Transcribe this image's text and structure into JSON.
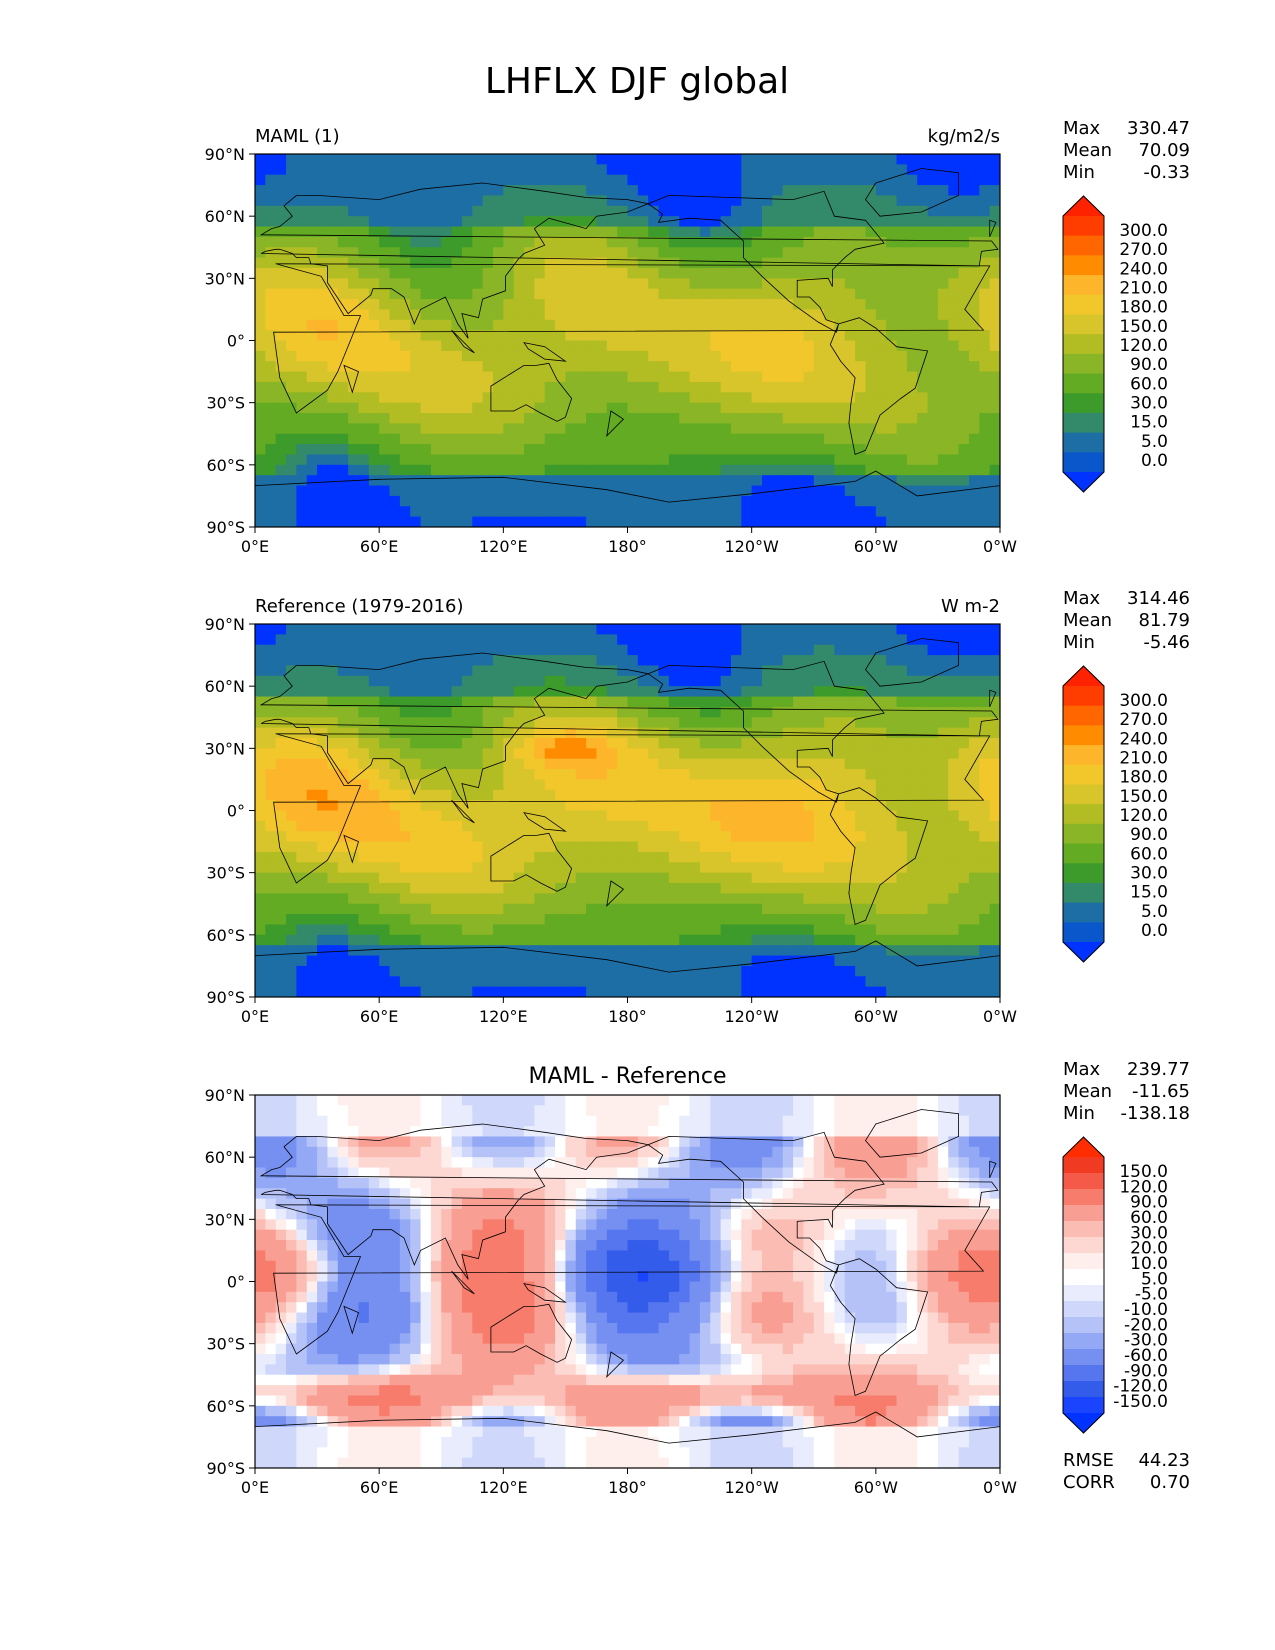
{
  "figure": {
    "title": "LHFLX DJF global"
  },
  "axes": {
    "lat_ticks": [
      "90°N",
      "60°N",
      "30°N",
      "0°",
      "30°S",
      "60°S",
      "90°S"
    ],
    "lon_ticks": [
      "0°E",
      "60°E",
      "120°E",
      "180°",
      "120°W",
      "60°W",
      "0°W"
    ]
  },
  "panels": [
    {
      "id": "test",
      "left_label": "MAML (1)",
      "right_label": "kg/m2/s",
      "center_title": "",
      "stats": [
        {
          "label": "Max",
          "value": "330.47"
        },
        {
          "label": "Mean",
          "value": "70.09"
        },
        {
          "label": "Min",
          "value": "-0.33"
        }
      ],
      "extra_stats": [],
      "colorbar": {
        "levels": [
          "300.0",
          "270.0",
          "240.0",
          "210.0",
          "180.0",
          "150.0",
          "120.0",
          "90.0",
          "60.0",
          "30.0",
          "15.0",
          "5.0",
          "0.0"
        ],
        "colors": [
          "#ff2200",
          "#ff3d00",
          "#ff6600",
          "#ff8c00",
          "#fdb52b",
          "#f1c72b",
          "#d8c52b",
          "#b1bd23",
          "#89b526",
          "#62ab23",
          "#3d9b2b",
          "#338a6b",
          "#1d6ea4",
          "#0a57cc",
          "#0033ff"
        ]
      }
    },
    {
      "id": "reference",
      "left_label": "Reference (1979-2016)",
      "right_label": "W m-2",
      "center_title": "",
      "stats": [
        {
          "label": "Max",
          "value": "314.46"
        },
        {
          "label": "Mean",
          "value": "81.79"
        },
        {
          "label": "Min",
          "value": "-5.46"
        }
      ],
      "extra_stats": [],
      "colorbar": {
        "levels": [
          "300.0",
          "270.0",
          "240.0",
          "210.0",
          "180.0",
          "150.0",
          "120.0",
          "90.0",
          "60.0",
          "30.0",
          "15.0",
          "5.0",
          "0.0"
        ],
        "colors": [
          "#ff2200",
          "#ff3d00",
          "#ff6600",
          "#ff8c00",
          "#fdb52b",
          "#f1c72b",
          "#d8c52b",
          "#b1bd23",
          "#89b526",
          "#62ab23",
          "#3d9b2b",
          "#338a6b",
          "#1d6ea4",
          "#0a57cc",
          "#0033ff"
        ]
      }
    },
    {
      "id": "difference",
      "left_label": "",
      "right_label": "",
      "center_title": "MAML - Reference",
      "stats": [
        {
          "label": "Max",
          "value": "239.77"
        },
        {
          "label": "Mean",
          "value": "-11.65"
        },
        {
          "label": "Min",
          "value": "-138.18"
        }
      ],
      "extra_stats": [
        {
          "label": "RMSE",
          "value": "44.23"
        },
        {
          "label": "CORR",
          "value": "0.70"
        }
      ],
      "colorbar": {
        "levels": [
          "150.0",
          "120.0",
          "90.0",
          "60.0",
          "30.0",
          "20.0",
          "10.0",
          "5.0",
          "-5.0",
          "-10.0",
          "-20.0",
          "-30.0",
          "-60.0",
          "-90.0",
          "-120.0",
          "-150.0"
        ],
        "colors": [
          "#ff2d00",
          "#f03a22",
          "#f45a47",
          "#f77c6c",
          "#f99e93",
          "#fbbcb4",
          "#fdd8d2",
          "#feeeec",
          "#ffffff",
          "#e8ecfd",
          "#cfd8fb",
          "#b4c2f8",
          "#94a9f5",
          "#7690f2",
          "#5576ee",
          "#345cea",
          "#1a44ff",
          "#0033ff"
        ]
      }
    }
  ]
}
